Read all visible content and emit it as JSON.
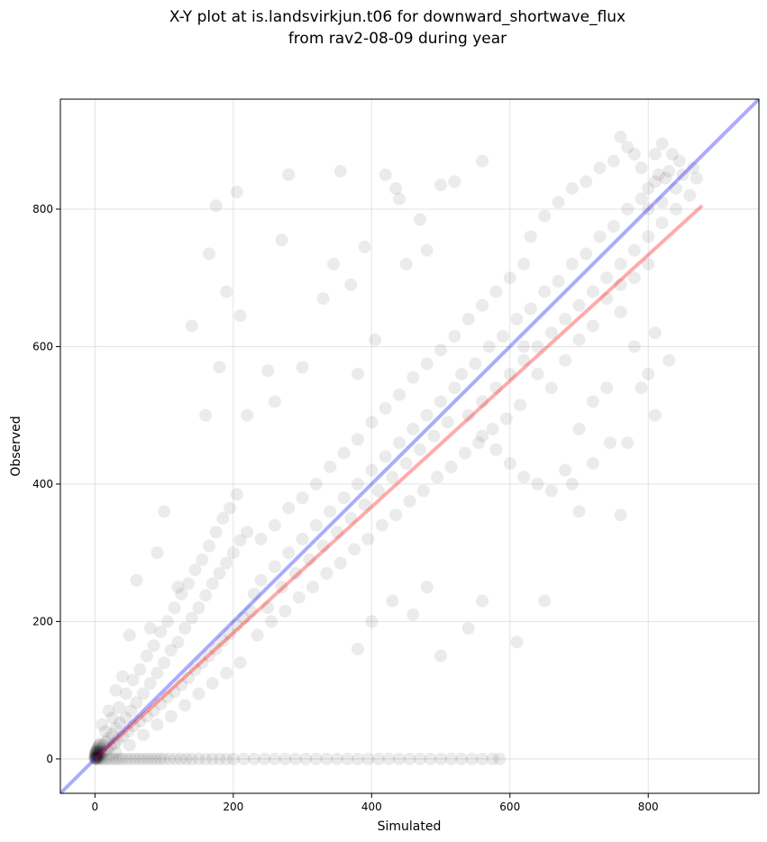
{
  "chart_data": {
    "type": "scatter",
    "title_lines": [
      "X-Y plot at is.landsvirkjun.t06 for downward_shortwave_flux",
      "from rav2-08-09 during year"
    ],
    "xlabel": "Simulated",
    "ylabel": "Observed",
    "xlim": [
      -50,
      960
    ],
    "ylim": [
      -50,
      960
    ],
    "xticks": [
      0,
      200,
      400,
      600,
      800
    ],
    "yticks": [
      0,
      200,
      400,
      600,
      800
    ],
    "grid": true,
    "point_color": "#000000",
    "point_alpha": 0.08,
    "lines": [
      {
        "name": "",
        "color": "#0000ff",
        "alpha": 0.33,
        "x": [
          -50,
          960
        ],
        "y": [
          -50,
          960
        ]
      },
      {
        "name": "",
        "color": "#ff0000",
        "alpha": 0.33,
        "x": [
          0,
          878
        ],
        "y": [
          0,
          805
        ]
      }
    ],
    "points": [
      [
        0,
        0
      ],
      [
        1,
        3
      ],
      [
        2,
        6
      ],
      [
        3,
        1
      ],
      [
        4,
        9
      ],
      [
        5,
        4
      ],
      [
        6,
        12
      ],
      [
        8,
        2
      ],
      [
        9,
        15
      ],
      [
        10,
        8
      ],
      [
        12,
        20
      ],
      [
        14,
        11
      ],
      [
        16,
        25
      ],
      [
        18,
        14
      ],
      [
        20,
        30
      ],
      [
        22,
        18
      ],
      [
        25,
        36
      ],
      [
        28,
        22
      ],
      [
        30,
        45
      ],
      [
        33,
        28
      ],
      [
        36,
        52
      ],
      [
        40,
        33
      ],
      [
        44,
        60
      ],
      [
        48,
        40
      ],
      [
        52,
        70
      ],
      [
        56,
        48
      ],
      [
        60,
        82
      ],
      [
        65,
        55
      ],
      [
        70,
        95
      ],
      [
        75,
        62
      ],
      [
        80,
        110
      ],
      [
        85,
        70
      ],
      [
        90,
        125
      ],
      [
        95,
        80
      ],
      [
        100,
        140
      ],
      [
        105,
        90
      ],
      [
        110,
        158
      ],
      [
        115,
        98
      ],
      [
        120,
        170
      ],
      [
        125,
        108
      ],
      [
        130,
        190
      ],
      [
        135,
        118
      ],
      [
        140,
        205
      ],
      [
        145,
        130
      ],
      [
        150,
        220
      ],
      [
        155,
        140
      ],
      [
        160,
        238
      ],
      [
        165,
        150
      ],
      [
        170,
        255
      ],
      [
        175,
        160
      ],
      [
        180,
        270
      ],
      [
        185,
        172
      ],
      [
        190,
        285
      ],
      [
        195,
        182
      ],
      [
        200,
        300
      ],
      [
        205,
        195
      ],
      [
        210,
        318
      ],
      [
        215,
        205
      ],
      [
        220,
        330
      ],
      [
        225,
        215
      ],
      [
        15,
        40
      ],
      [
        25,
        60
      ],
      [
        35,
        75
      ],
      [
        45,
        95
      ],
      [
        55,
        115
      ],
      [
        65,
        130
      ],
      [
        75,
        150
      ],
      [
        85,
        165
      ],
      [
        95,
        185
      ],
      [
        105,
        200
      ],
      [
        115,
        220
      ],
      [
        125,
        240
      ],
      [
        135,
        255
      ],
      [
        145,
        275
      ],
      [
        155,
        290
      ],
      [
        165,
        310
      ],
      [
        175,
        330
      ],
      [
        185,
        350
      ],
      [
        195,
        365
      ],
      [
        205,
        385
      ],
      [
        30,
        10
      ],
      [
        50,
        20
      ],
      [
        70,
        35
      ],
      [
        90,
        50
      ],
      [
        110,
        62
      ],
      [
        130,
        78
      ],
      [
        150,
        95
      ],
      [
        170,
        110
      ],
      [
        190,
        125
      ],
      [
        210,
        140
      ],
      [
        230,
        240
      ],
      [
        240,
        260
      ],
      [
        250,
        220
      ],
      [
        260,
        280
      ],
      [
        270,
        250
      ],
      [
        280,
        300
      ],
      [
        290,
        270
      ],
      [
        300,
        320
      ],
      [
        310,
        290
      ],
      [
        320,
        340
      ],
      [
        330,
        310
      ],
      [
        340,
        360
      ],
      [
        350,
        330
      ],
      [
        360,
        380
      ],
      [
        370,
        350
      ],
      [
        380,
        400
      ],
      [
        390,
        370
      ],
      [
        400,
        420
      ],
      [
        410,
        390
      ],
      [
        420,
        440
      ],
      [
        430,
        410
      ],
      [
        440,
        460
      ],
      [
        450,
        430
      ],
      [
        460,
        480
      ],
      [
        470,
        450
      ],
      [
        480,
        500
      ],
      [
        490,
        470
      ],
      [
        500,
        520
      ],
      [
        510,
        490
      ],
      [
        520,
        540
      ],
      [
        235,
        180
      ],
      [
        255,
        200
      ],
      [
        275,
        215
      ],
      [
        295,
        235
      ],
      [
        315,
        250
      ],
      [
        335,
        270
      ],
      [
        355,
        285
      ],
      [
        375,
        305
      ],
      [
        395,
        320
      ],
      [
        415,
        340
      ],
      [
        435,
        355
      ],
      [
        455,
        375
      ],
      [
        475,
        390
      ],
      [
        495,
        410
      ],
      [
        515,
        425
      ],
      [
        535,
        445
      ],
      [
        555,
        460
      ],
      [
        575,
        480
      ],
      [
        595,
        495
      ],
      [
        615,
        515
      ],
      [
        240,
        320
      ],
      [
        260,
        340
      ],
      [
        280,
        365
      ],
      [
        300,
        380
      ],
      [
        320,
        400
      ],
      [
        340,
        425
      ],
      [
        360,
        445
      ],
      [
        380,
        465
      ],
      [
        400,
        490
      ],
      [
        420,
        510
      ],
      [
        440,
        530
      ],
      [
        460,
        555
      ],
      [
        480,
        575
      ],
      [
        500,
        595
      ],
      [
        520,
        615
      ],
      [
        540,
        640
      ],
      [
        560,
        660
      ],
      [
        580,
        680
      ],
      [
        600,
        700
      ],
      [
        620,
        720
      ],
      [
        530,
        560
      ],
      [
        550,
        575
      ],
      [
        570,
        600
      ],
      [
        590,
        615
      ],
      [
        610,
        640
      ],
      [
        630,
        655
      ],
      [
        650,
        680
      ],
      [
        670,
        695
      ],
      [
        690,
        720
      ],
      [
        710,
        735
      ],
      [
        730,
        760
      ],
      [
        750,
        775
      ],
      [
        770,
        800
      ],
      [
        790,
        815
      ],
      [
        810,
        840
      ],
      [
        830,
        855
      ],
      [
        845,
        870
      ],
      [
        800,
        830
      ],
      [
        815,
        850
      ],
      [
        825,
        845
      ],
      [
        540,
        500
      ],
      [
        560,
        520
      ],
      [
        580,
        540
      ],
      [
        600,
        560
      ],
      [
        620,
        580
      ],
      [
        640,
        600
      ],
      [
        660,
        620
      ],
      [
        680,
        640
      ],
      [
        700,
        660
      ],
      [
        720,
        680
      ],
      [
        740,
        700
      ],
      [
        760,
        720
      ],
      [
        780,
        740
      ],
      [
        800,
        760
      ],
      [
        820,
        780
      ],
      [
        840,
        800
      ],
      [
        860,
        820
      ],
      [
        760,
        650
      ],
      [
        780,
        600
      ],
      [
        800,
        560
      ],
      [
        560,
        470
      ],
      [
        580,
        450
      ],
      [
        600,
        430
      ],
      [
        620,
        410
      ],
      [
        640,
        400
      ],
      [
        660,
        390
      ],
      [
        680,
        420
      ],
      [
        700,
        480
      ],
      [
        720,
        520
      ],
      [
        740,
        540
      ],
      [
        620,
        600
      ],
      [
        640,
        560
      ],
      [
        660,
        540
      ],
      [
        680,
        580
      ],
      [
        700,
        610
      ],
      [
        720,
        630
      ],
      [
        740,
        670
      ],
      [
        760,
        690
      ],
      [
        780,
        700
      ],
      [
        800,
        720
      ],
      [
        630,
        760
      ],
      [
        650,
        790
      ],
      [
        670,
        810
      ],
      [
        690,
        830
      ],
      [
        710,
        840
      ],
      [
        730,
        860
      ],
      [
        750,
        870
      ],
      [
        770,
        890
      ],
      [
        790,
        860
      ],
      [
        810,
        880
      ],
      [
        820,
        895
      ],
      [
        835,
        880
      ],
      [
        760,
        905
      ],
      [
        780,
        880
      ],
      [
        800,
        800
      ],
      [
        820,
        810
      ],
      [
        840,
        830
      ],
      [
        850,
        850
      ],
      [
        865,
        860
      ],
      [
        870,
        845
      ],
      [
        140,
        630
      ],
      [
        165,
        735
      ],
      [
        175,
        805
      ],
      [
        190,
        680
      ],
      [
        205,
        825
      ],
      [
        210,
        645
      ],
      [
        250,
        565
      ],
      [
        270,
        755
      ],
      [
        280,
        850
      ],
      [
        330,
        670
      ],
      [
        345,
        720
      ],
      [
        355,
        855
      ],
      [
        370,
        690
      ],
      [
        390,
        745
      ],
      [
        405,
        610
      ],
      [
        420,
        850
      ],
      [
        435,
        830
      ],
      [
        440,
        815
      ],
      [
        470,
        785
      ],
      [
        500,
        835
      ],
      [
        520,
        840
      ],
      [
        560,
        870
      ],
      [
        450,
        720
      ],
      [
        480,
        740
      ],
      [
        380,
        560
      ],
      [
        300,
        570
      ],
      [
        260,
        520
      ],
      [
        220,
        500
      ],
      [
        180,
        570
      ],
      [
        160,
        500
      ],
      [
        120,
        250
      ],
      [
        100,
        360
      ],
      [
        90,
        300
      ],
      [
        80,
        190
      ],
      [
        60,
        260
      ],
      [
        50,
        180
      ],
      [
        40,
        120
      ],
      [
        30,
        100
      ],
      [
        20,
        70
      ],
      [
        10,
        50
      ],
      [
        380,
        160
      ],
      [
        400,
        200
      ],
      [
        430,
        230
      ],
      [
        460,
        210
      ],
      [
        480,
        250
      ],
      [
        500,
        150
      ],
      [
        540,
        190
      ],
      [
        560,
        230
      ],
      [
        610,
        170
      ],
      [
        650,
        230
      ],
      [
        700,
        360
      ],
      [
        690,
        400
      ],
      [
        720,
        430
      ],
      [
        745,
        460
      ],
      [
        770,
        460
      ],
      [
        790,
        540
      ],
      [
        810,
        500
      ],
      [
        830,
        580
      ],
      [
        810,
        620
      ],
      [
        760,
        355
      ],
      [
        2,
        0
      ],
      [
        5,
        0
      ],
      [
        8,
        0
      ],
      [
        12,
        0
      ],
      [
        16,
        0
      ],
      [
        20,
        0
      ],
      [
        25,
        0
      ],
      [
        30,
        0
      ],
      [
        35,
        0
      ],
      [
        40,
        0
      ],
      [
        46,
        0
      ],
      [
        52,
        0
      ],
      [
        58,
        0
      ],
      [
        64,
        0
      ],
      [
        70,
        0
      ],
      [
        76,
        0
      ],
      [
        82,
        0
      ],
      [
        88,
        0
      ],
      [
        94,
        0
      ],
      [
        100,
        0
      ],
      [
        108,
        0
      ],
      [
        116,
        0
      ],
      [
        124,
        0
      ],
      [
        132,
        0
      ],
      [
        140,
        0
      ],
      [
        150,
        0
      ],
      [
        160,
        0
      ],
      [
        170,
        0
      ],
      [
        180,
        0
      ],
      [
        190,
        0
      ],
      [
        200,
        0
      ],
      [
        215,
        0
      ],
      [
        230,
        0
      ],
      [
        245,
        0
      ],
      [
        260,
        0
      ],
      [
        275,
        0
      ],
      [
        290,
        0
      ],
      [
        305,
        0
      ],
      [
        320,
        0
      ],
      [
        335,
        0
      ],
      [
        350,
        0
      ],
      [
        365,
        0
      ],
      [
        380,
        0
      ],
      [
        395,
        0
      ],
      [
        410,
        0
      ],
      [
        425,
        0
      ],
      [
        440,
        0
      ],
      [
        455,
        0
      ],
      [
        470,
        0
      ],
      [
        485,
        0
      ],
      [
        500,
        0
      ],
      [
        515,
        0
      ],
      [
        530,
        0
      ],
      [
        545,
        0
      ],
      [
        560,
        0
      ],
      [
        575,
        0
      ],
      [
        585,
        0
      ],
      [
        0,
        2
      ],
      [
        0,
        5
      ],
      [
        0,
        8
      ],
      [
        1,
        10
      ],
      [
        2,
        12
      ],
      [
        3,
        14
      ],
      [
        4,
        16
      ],
      [
        5,
        18
      ],
      [
        6,
        20
      ],
      [
        7,
        22
      ],
      [
        0,
        1
      ],
      [
        1,
        1
      ],
      [
        2,
        2
      ],
      [
        3,
        3
      ],
      [
        4,
        5
      ],
      [
        1,
        7
      ],
      [
        2,
        9
      ],
      [
        3,
        11
      ],
      [
        6,
        7
      ],
      [
        8,
        10
      ]
    ]
  }
}
